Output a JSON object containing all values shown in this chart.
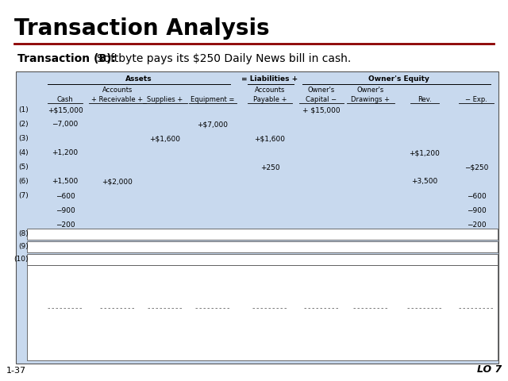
{
  "title": "Transaction Analysis",
  "transaction_bold": "Transaction (8):",
  "transaction_normal": "  Softbyte pays its $250 Daily News bill in cash.",
  "slide_number": "1-37",
  "lo_number": "LO 7",
  "bg_color": "#ffffff",
  "table_bg_color": "#c8d9ee",
  "title_color": "#000000",
  "header_line_color": "#8b0000",
  "table_border_color": "#555555",
  "white_color": "#ffffff",
  "row_labels": [
    "(1)",
    "(2)",
    "(3)",
    "(4)",
    "(5)",
    "(6)",
    "(7)",
    "",
    ""
  ],
  "cash_vals": [
    "+$15,000",
    "−7,000",
    "",
    "+1,200",
    "",
    "+1,500",
    "−600",
    "−900",
    "−200"
  ],
  "rec_vals": [
    "",
    "",
    "",
    "",
    "",
    "+$2,000",
    "",
    "",
    ""
  ],
  "sup_vals": [
    "",
    "",
    "+$1,600",
    "",
    "",
    "",
    "",
    "",
    ""
  ],
  "equip_vals": [
    "",
    "+$7,000",
    "",
    "",
    "",
    "",
    "",
    "",
    ""
  ],
  "pay_vals": [
    "",
    "",
    "+$1,600",
    "",
    "+250",
    "",
    "",
    "",
    ""
  ],
  "cap_vals": [
    "+ $15,000",
    "",
    "",
    "",
    "",
    "",
    "",
    "",
    ""
  ],
  "draw_vals": [
    "",
    "",
    "",
    "",
    "",
    "",
    "",
    "",
    ""
  ],
  "rev_vals": [
    "",
    "",
    "",
    "+$1,200",
    "",
    "+3,500",
    "",
    "",
    ""
  ],
  "exp_vals": [
    "",
    "",
    "",
    "",
    "−$250",
    "",
    "−600",
    "−900",
    "−200"
  ],
  "empty_row_labels": [
    "(8)",
    "(9)",
    "(10)"
  ],
  "font_size_title": 20,
  "font_size_trans": 10,
  "font_size_table": 6.5,
  "font_size_footer": 8
}
